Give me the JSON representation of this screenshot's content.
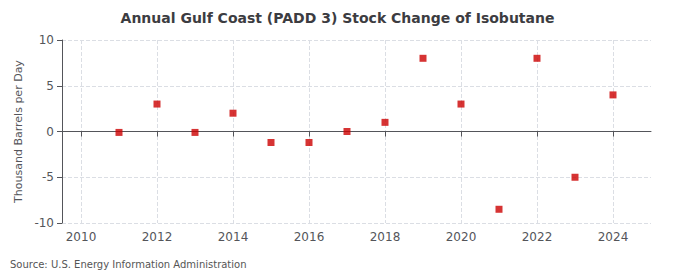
{
  "chart_data": {
    "type": "scatter",
    "title": "Annual Gulf Coast (PADD 3) Stock Change of Isobutane",
    "ylabel": "Thousand Barrels per Day",
    "annotation": "Source: U.S. Energy Information Administration",
    "x": [
      2011,
      2012,
      2013,
      2014,
      2015,
      2016,
      2017,
      2018,
      2019,
      2020,
      2021,
      2022,
      2023,
      2024
    ],
    "values": [
      -0.1,
      3.0,
      -0.1,
      2.0,
      -1.2,
      -1.2,
      0.0,
      1.0,
      8.0,
      3.0,
      -8.5,
      8.0,
      -5.0,
      4.0
    ],
    "color": "#cc0000",
    "marker": "square",
    "xlim": [
      2009.5,
      2025.0
    ],
    "xticks": [
      2010,
      2012,
      2014,
      2016,
      2018,
      2020,
      2022,
      2024
    ],
    "ylim": [
      -10,
      10
    ],
    "yticks": [
      -10,
      -5,
      0,
      5,
      10
    ],
    "grid": true
  }
}
